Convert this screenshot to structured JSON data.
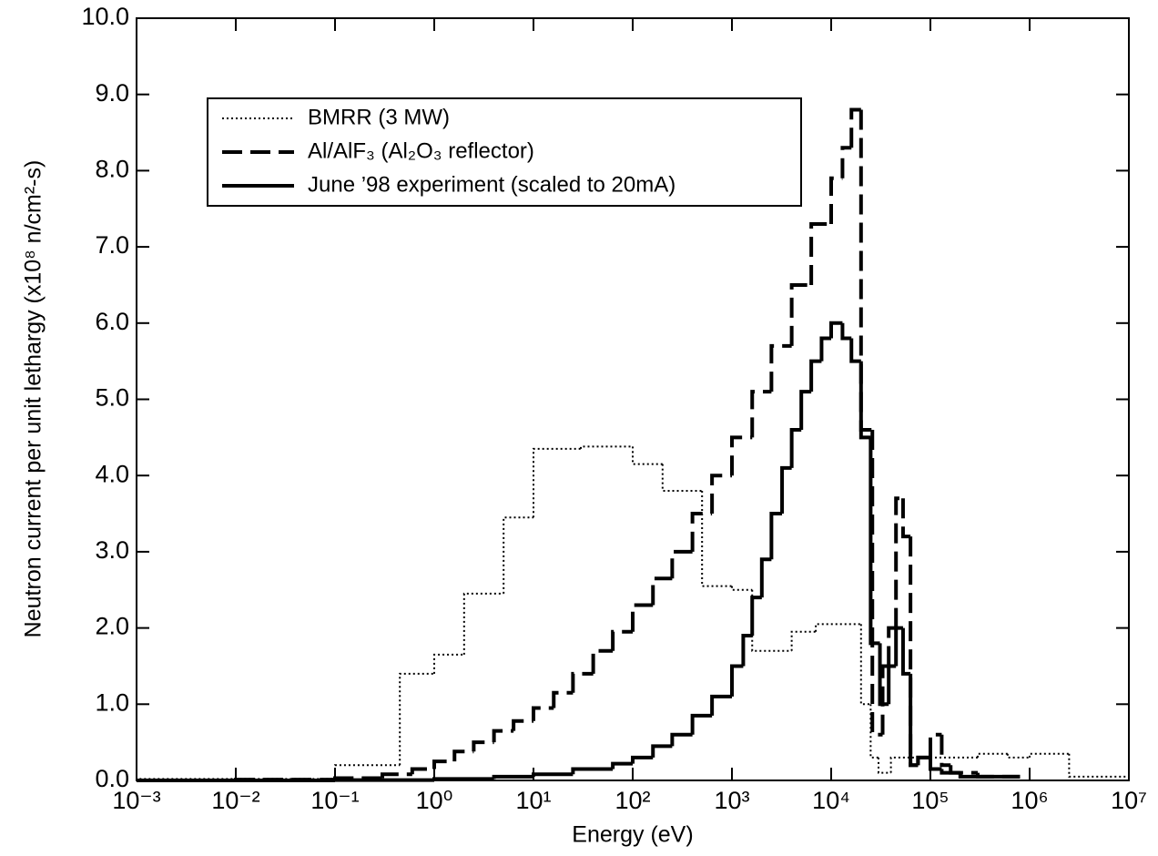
{
  "chart_data": {
    "type": "histogram",
    "xlabel": "Energy (eV)",
    "ylabel": "Neutron current per unit lethargy (x10⁸ n/cm²-s)",
    "xscale": "log",
    "xlim": [
      0.001,
      10000000
    ],
    "ylim": [
      0,
      10
    ],
    "xticks": [
      {
        "value": 0.001,
        "label": "10⁻³"
      },
      {
        "value": 0.01,
        "label": "10⁻²"
      },
      {
        "value": 0.1,
        "label": "10⁻¹"
      },
      {
        "value": 1,
        "label": "10⁰"
      },
      {
        "value": 10,
        "label": "10¹"
      },
      {
        "value": 100,
        "label": "10²"
      },
      {
        "value": 1000,
        "label": "10³"
      },
      {
        "value": 10000,
        "label": "10⁴"
      },
      {
        "value": 100000,
        "label": "10⁵"
      },
      {
        "value": 1000000,
        "label": "10⁶"
      },
      {
        "value": 10000000,
        "label": "10⁷"
      }
    ],
    "yticks": [
      {
        "value": 0,
        "label": "0.0"
      },
      {
        "value": 1,
        "label": "1.0"
      },
      {
        "value": 2,
        "label": "2.0"
      },
      {
        "value": 3,
        "label": "3.0"
      },
      {
        "value": 4,
        "label": "4.0"
      },
      {
        "value": 5,
        "label": "5.0"
      },
      {
        "value": 6,
        "label": "6.0"
      },
      {
        "value": 7,
        "label": "7.0"
      },
      {
        "value": 8,
        "label": "8.0"
      },
      {
        "value": 9,
        "label": "9.0"
      },
      {
        "value": 10,
        "label": "10.0"
      }
    ],
    "legend": "upper left",
    "series": [
      {
        "name": "BMRR (3 MW)",
        "color": "#000000",
        "style": "dotted",
        "bins": [
          0.001,
          0.1,
          0.45,
          1,
          2,
          5,
          10,
          30,
          100,
          200,
          500,
          1000,
          1600,
          4000,
          7000,
          20000,
          25000,
          30000,
          40000,
          100000,
          300000,
          600000,
          1000000,
          2500000,
          10000000
        ],
        "values": [
          0.02,
          0.2,
          1.4,
          1.65,
          2.45,
          3.45,
          4.35,
          4.38,
          4.15,
          3.8,
          2.55,
          2.5,
          1.7,
          1.95,
          2.05,
          1.0,
          0.3,
          0.1,
          0.3,
          0.3,
          0.35,
          0.3,
          0.35,
          0.05
        ]
      },
      {
        "name": "Al/AlF₃ (Al₂O₃ reflector)",
        "color": "#000000",
        "style": "dashed",
        "bins": [
          0.001,
          0.01,
          0.1,
          0.3,
          0.6,
          1,
          1.6,
          2.5,
          4,
          6.3,
          10,
          16,
          25,
          40,
          63,
          100,
          160,
          250,
          400,
          630,
          1000,
          1600,
          2500,
          4000,
          6300,
          10000,
          13000,
          16000,
          20000,
          26000,
          33000,
          38000,
          45000,
          53000,
          63000,
          75000,
          100000,
          130000,
          160000,
          300000,
          800000
        ],
        "values": [
          0.0,
          0.01,
          0.03,
          0.08,
          0.15,
          0.25,
          0.38,
          0.5,
          0.65,
          0.78,
          0.95,
          1.15,
          1.4,
          1.7,
          1.95,
          2.3,
          2.65,
          3.0,
          3.5,
          4.0,
          4.5,
          5.1,
          5.7,
          6.5,
          7.3,
          7.9,
          8.3,
          8.8,
          4.6,
          0.6,
          1.5,
          2.0,
          3.7,
          3.2,
          0.2,
          0.3,
          0.6,
          0.2,
          0.1,
          0.05
        ]
      },
      {
        "name": "June ’98 experiment (scaled to 20mA)",
        "color": "#000000",
        "style": "solid",
        "bins": [
          0.001,
          0.1,
          1,
          4,
          10,
          25,
          63,
          100,
          160,
          250,
          400,
          630,
          1000,
          1300,
          1600,
          2000,
          2500,
          3200,
          4000,
          5000,
          6300,
          8000,
          10000,
          13000,
          16000,
          20000,
          25000,
          31000,
          38000,
          45000,
          53000,
          63000,
          75000,
          100000,
          130000,
          200000,
          800000
        ],
        "values": [
          0.0,
          0.005,
          0.02,
          0.05,
          0.08,
          0.15,
          0.22,
          0.3,
          0.45,
          0.6,
          0.85,
          1.1,
          1.5,
          1.9,
          2.4,
          2.9,
          3.5,
          4.1,
          4.6,
          5.1,
          5.5,
          5.8,
          6.0,
          5.8,
          5.5,
          4.5,
          1.8,
          1.0,
          1.5,
          2.0,
          1.4,
          0.2,
          0.3,
          0.15,
          0.1,
          0.05
        ]
      }
    ]
  }
}
